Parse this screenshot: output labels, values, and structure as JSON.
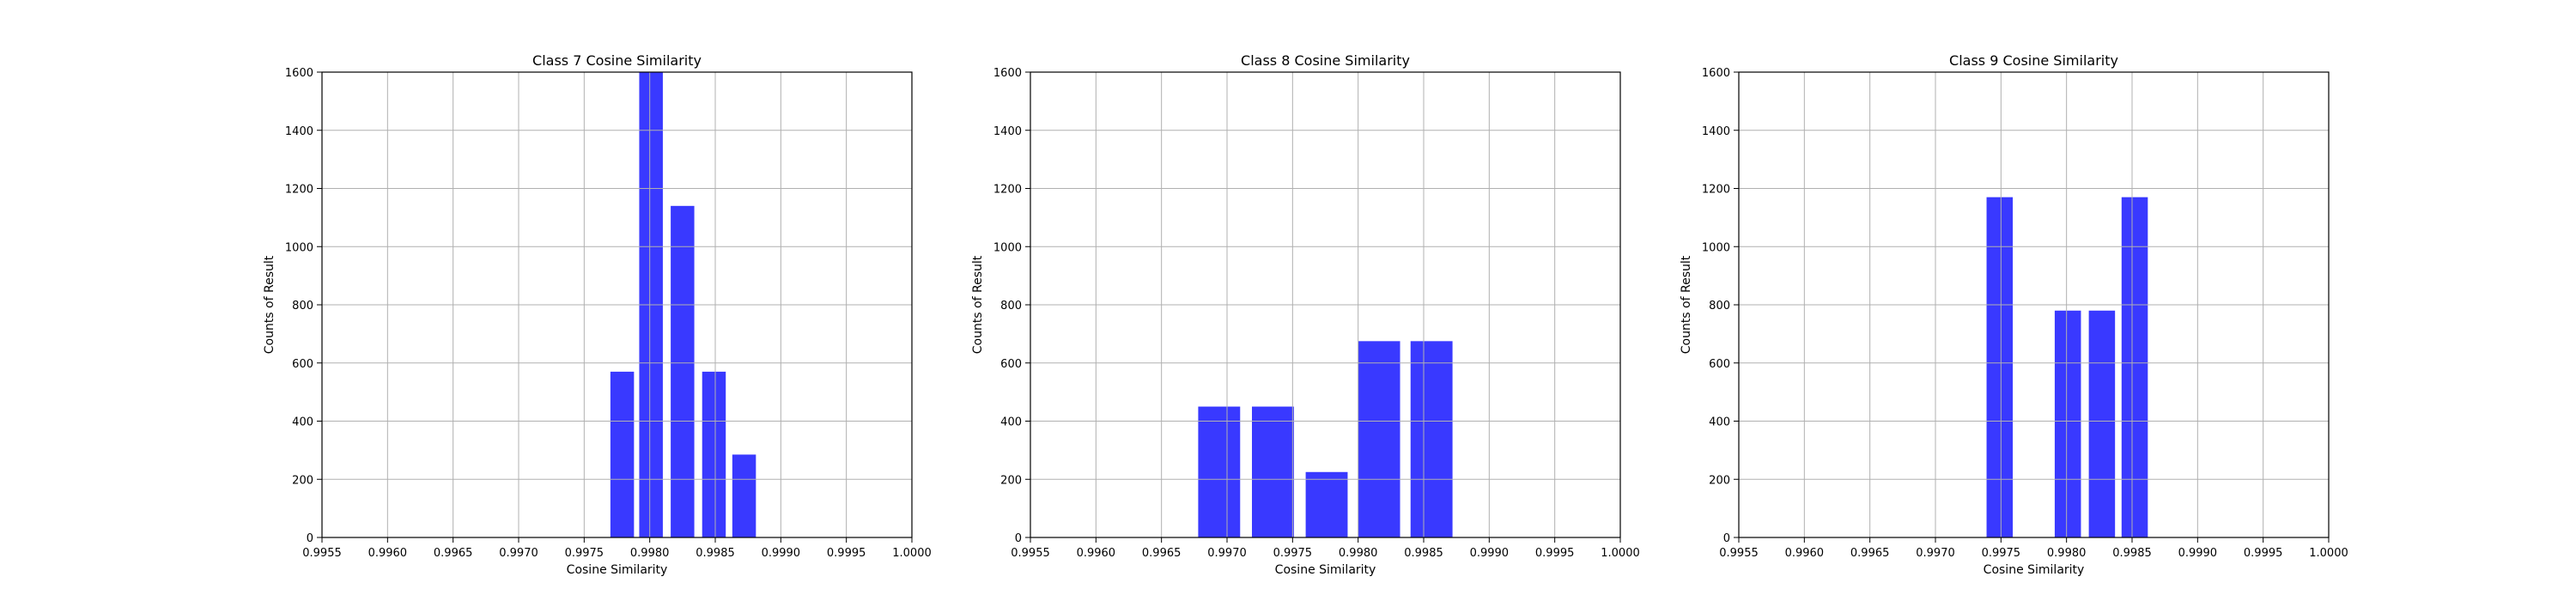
{
  "chart_data": [
    {
      "type": "bar",
      "title": "Class 7 Cosine Similarity",
      "xlabel": "Cosine Similarity",
      "ylabel": "Counts of Result",
      "xlim": [
        0.9955,
        1.0
      ],
      "ylim": [
        0,
        1600
      ],
      "grid": true,
      "color": "#3333ff",
      "xticks": [
        "0.9955",
        "0.9960",
        "0.9965",
        "0.9970",
        "0.9975",
        "0.9980",
        "0.9985",
        "0.9990",
        "0.9995",
        "1.0000"
      ],
      "yticks": [
        "0",
        "200",
        "400",
        "600",
        "800",
        "1000",
        "1200",
        "1400",
        "1600"
      ],
      "bars": [
        {
          "x": 0.99779,
          "width": 0.00018,
          "value": 570
        },
        {
          "x": 0.99801,
          "width": 0.00018,
          "value": 1600
        },
        {
          "x": 0.99825,
          "width": 0.00018,
          "value": 1140
        },
        {
          "x": 0.99849,
          "width": 0.00018,
          "value": 570
        },
        {
          "x": 0.99872,
          "width": 0.00018,
          "value": 285
        }
      ]
    },
    {
      "type": "bar",
      "title": "Class 8 Cosine Similarity",
      "xlabel": "Cosine Similarity",
      "ylabel": "Counts of Result",
      "xlim": [
        0.9955,
        1.0
      ],
      "ylim": [
        0,
        1600
      ],
      "grid": true,
      "color": "#3333ff",
      "xticks": [
        "0.9955",
        "0.9960",
        "0.9965",
        "0.9970",
        "0.9975",
        "0.9980",
        "0.9985",
        "0.9990",
        "0.9995",
        "1.0000"
      ],
      "yticks": [
        "0",
        "200",
        "400",
        "600",
        "800",
        "1000",
        "1200",
        "1400",
        "1600"
      ],
      "bars": [
        {
          "x": 0.99694,
          "width": 0.00032,
          "value": 450
        },
        {
          "x": 0.99735,
          "width": 0.00032,
          "value": 450
        },
        {
          "x": 0.99776,
          "width": 0.00032,
          "value": 225
        },
        {
          "x": 0.99816,
          "width": 0.00032,
          "value": 675
        },
        {
          "x": 0.99856,
          "width": 0.00032,
          "value": 675
        }
      ]
    },
    {
      "type": "bar",
      "title": "Class 9 Cosine Similarity",
      "xlabel": "Cosine Similarity",
      "ylabel": "Counts of Result",
      "xlim": [
        0.9955,
        1.0
      ],
      "ylim": [
        0,
        1600
      ],
      "grid": true,
      "color": "#3333ff",
      "xticks": [
        "0.9955",
        "0.9960",
        "0.9965",
        "0.9970",
        "0.9975",
        "0.9980",
        "0.9985",
        "0.9990",
        "0.9995",
        "1.0000"
      ],
      "yticks": [
        "0",
        "200",
        "400",
        "600",
        "800",
        "1000",
        "1200",
        "1400",
        "1600"
      ],
      "bars": [
        {
          "x": 0.99749,
          "width": 0.0002,
          "value": 1170
        },
        {
          "x": 0.99801,
          "width": 0.0002,
          "value": 780
        },
        {
          "x": 0.99827,
          "width": 0.0002,
          "value": 780
        },
        {
          "x": 0.99852,
          "width": 0.0002,
          "value": 1170
        }
      ]
    }
  ]
}
